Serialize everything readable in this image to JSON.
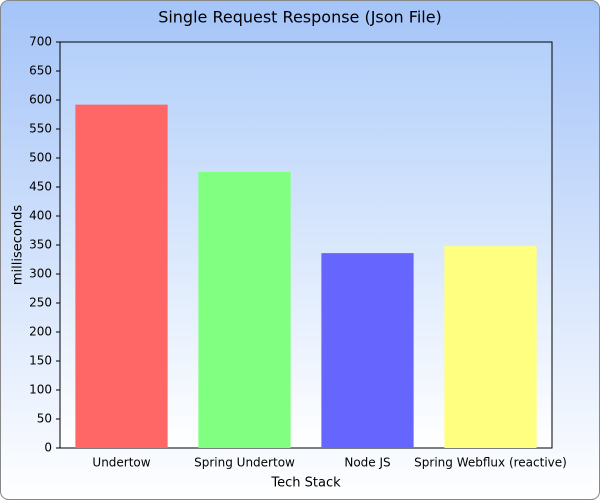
{
  "chart_data": {
    "type": "bar",
    "title": "Single Request Response (Json File)",
    "x_label": "Tech Stack",
    "y_label": "milliseconds",
    "categories": [
      "Undertow",
      "Spring Undertow",
      "Node JS",
      "Spring Webflux (reactive)"
    ],
    "values": [
      592,
      476,
      336,
      348
    ],
    "colors": [
      "#ff6666",
      "#80ff80",
      "#6666ff",
      "#ffff80"
    ],
    "ylim": [
      0,
      700
    ],
    "yticks": [
      0,
      50,
      100,
      150,
      200,
      250,
      300,
      350,
      400,
      450,
      500,
      550,
      600,
      650,
      700
    ],
    "grid": false
  }
}
